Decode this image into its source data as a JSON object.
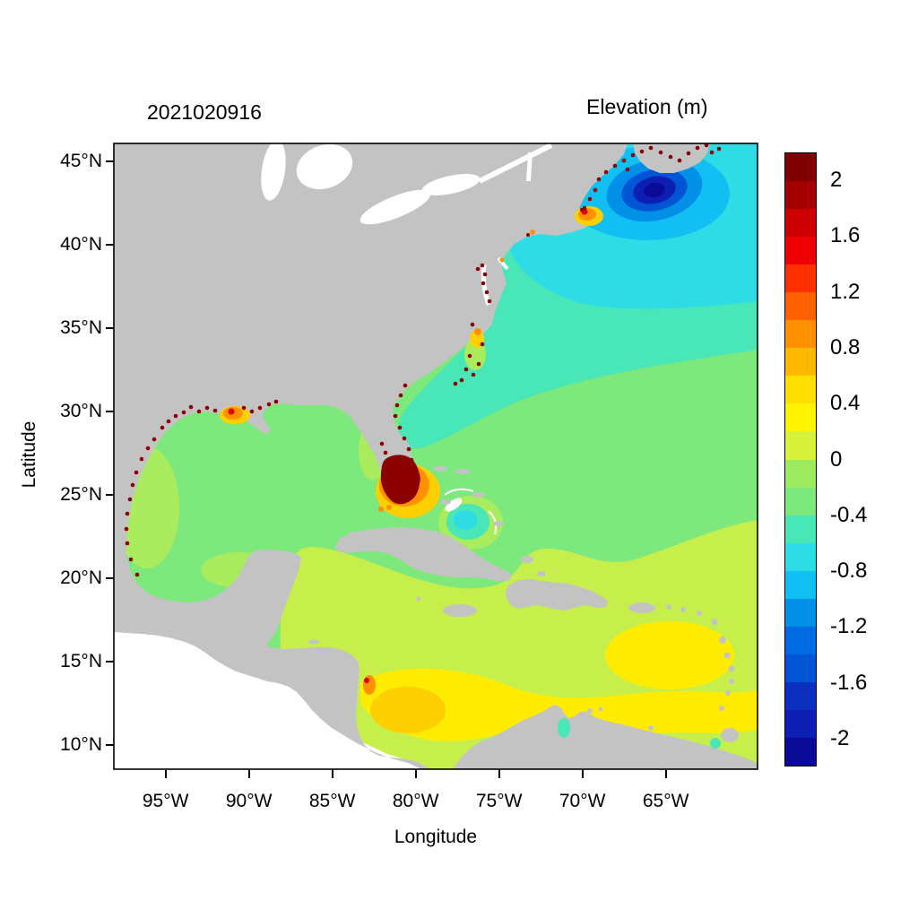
{
  "header": {
    "left_title": "2021020916",
    "right_title": "Elevation (m)"
  },
  "axes": {
    "x_label": "Longitude",
    "y_label": "Latitude",
    "x_ticks": [
      {
        "label": "95°W",
        "lon_w": 95
      },
      {
        "label": "90°W",
        "lon_w": 90
      },
      {
        "label": "85°W",
        "lon_w": 85
      },
      {
        "label": "80°W",
        "lon_w": 80
      },
      {
        "label": "75°W",
        "lon_w": 75
      },
      {
        "label": "70°W",
        "lon_w": 70
      },
      {
        "label": "65°W",
        "lon_w": 65
      }
    ],
    "y_ticks": [
      {
        "label": "45°N",
        "lat_n": 45
      },
      {
        "label": "40°N",
        "lat_n": 40
      },
      {
        "label": "35°N",
        "lat_n": 35
      },
      {
        "label": "30°N",
        "lat_n": 30
      },
      {
        "label": "25°N",
        "lat_n": 25
      },
      {
        "label": "20°N",
        "lat_n": 20
      },
      {
        "label": "15°N",
        "lat_n": 15
      },
      {
        "label": "10°N",
        "lat_n": 10
      }
    ]
  },
  "colorbar": {
    "vmax": 2.2,
    "vmin": -2.2,
    "ticks": [
      {
        "label": "2",
        "value": 2
      },
      {
        "label": "1.6",
        "value": 1.6
      },
      {
        "label": "1.2",
        "value": 1.2
      },
      {
        "label": "0.8",
        "value": 0.8
      },
      {
        "label": "0.4",
        "value": 0.4
      },
      {
        "label": "0",
        "value": 0
      },
      {
        "label": "-0.4",
        "value": -0.4
      },
      {
        "label": "-0.8",
        "value": -0.8
      },
      {
        "label": "-1.2",
        "value": -1.2
      },
      {
        "label": "-1.6",
        "value": -1.6
      },
      {
        "label": "-2",
        "value": -2
      }
    ],
    "colors": [
      "#7f0000",
      "#a50000",
      "#cc0000",
      "#ef0000",
      "#ff3000",
      "#ff6000",
      "#ff9000",
      "#ffb800",
      "#ffdf00",
      "#fff500",
      "#d8f23c",
      "#9ceb60",
      "#7de87c",
      "#49e6b8",
      "#2edce6",
      "#12bff2",
      "#0090e8",
      "#006ae0",
      "#0055d4",
      "#0d2fc0",
      "#0d1fb2",
      "#0a0a96"
    ]
  },
  "palette": {
    "land": "#c3c3c3",
    "white": "#ffffff",
    "green": "#7de87c",
    "turq_green": "#49e6b8",
    "cyan": "#2edce6",
    "light_blue": "#12bff2",
    "blue": "#0090e8",
    "deep_blue": "#0055d4",
    "navy2": "#0d1fb2",
    "navy": "#0a0a96",
    "yellow_green": "#c6ef4c",
    "soft_yellow_green": "#a9ec5e",
    "yellow": "#ffec00",
    "gold": "#ffd000",
    "orange": "#ff9000",
    "red": "#e00000",
    "dark_red": "#8b0000",
    "frame": "#000000"
  },
  "chart_data": {
    "type": "heatmap",
    "subtype": "filled-contour geographic field plot",
    "title": "2021020916",
    "colorbar_title": "Elevation (m)",
    "xlabel": "Longitude",
    "ylabel": "Latitude",
    "x_tick_labels": [
      "95°W",
      "90°W",
      "85°W",
      "80°W",
      "75°W",
      "70°W",
      "65°W"
    ],
    "y_tick_labels": [
      "10°N",
      "15°N",
      "20°N",
      "25°N",
      "30°N",
      "35°N",
      "40°N",
      "45°N"
    ],
    "xlim_deg_west": [
      98,
      59.5
    ],
    "ylim_deg_north": [
      8.5,
      46
    ],
    "colorbar": {
      "range": [
        -2,
        2
      ],
      "tick_step": 0.4,
      "n_segments": 22,
      "orientation": "vertical",
      "position": "right"
    },
    "grid": false,
    "land_color": "#c3c3c3",
    "outside_domain_color": "#ffffff",
    "notable_values": [
      {
        "region": "Gulf of Mexico interior",
        "elevation_m": 0.0
      },
      {
        "region": "Caribbean Sea",
        "elevation_m": 0.2
      },
      {
        "region": "Southwest Caribbean (Colombia Basin)",
        "elevation_m": 0.45
      },
      {
        "region": "Subtropical North Atlantic",
        "elevation_m": -0.1
      },
      {
        "region": "Mid-Atlantic Bight offshore",
        "elevation_m": -0.5
      },
      {
        "region": "Northeast Atlantic shelf (upper right)",
        "elevation_m": -0.7
      },
      {
        "region": "Gulf of Maine / Scotian Shelf low",
        "elevation_m": -1.4
      },
      {
        "region": "Bay of Fundy minimum (dark blue core)",
        "elevation_m": -2.0
      },
      {
        "region": "Massachusetts Bay / Cape Cod high",
        "elevation_m": 1.0
      },
      {
        "region": "South Florida Biscayne/Everglades maximum (dark red blob)",
        "elevation_m": 2.2
      },
      {
        "region": "Louisiana coastal marsh high (orange spot)",
        "elevation_m": 0.9
      },
      {
        "region": "Bahamas cyan eddy spot",
        "elevation_m": -0.6
      },
      {
        "region": "Speckled coastal-bay highs (Texas, Louisiana, Carolinas, Chesapeake, Maine)",
        "elevation_m": 2.0
      }
    ]
  }
}
